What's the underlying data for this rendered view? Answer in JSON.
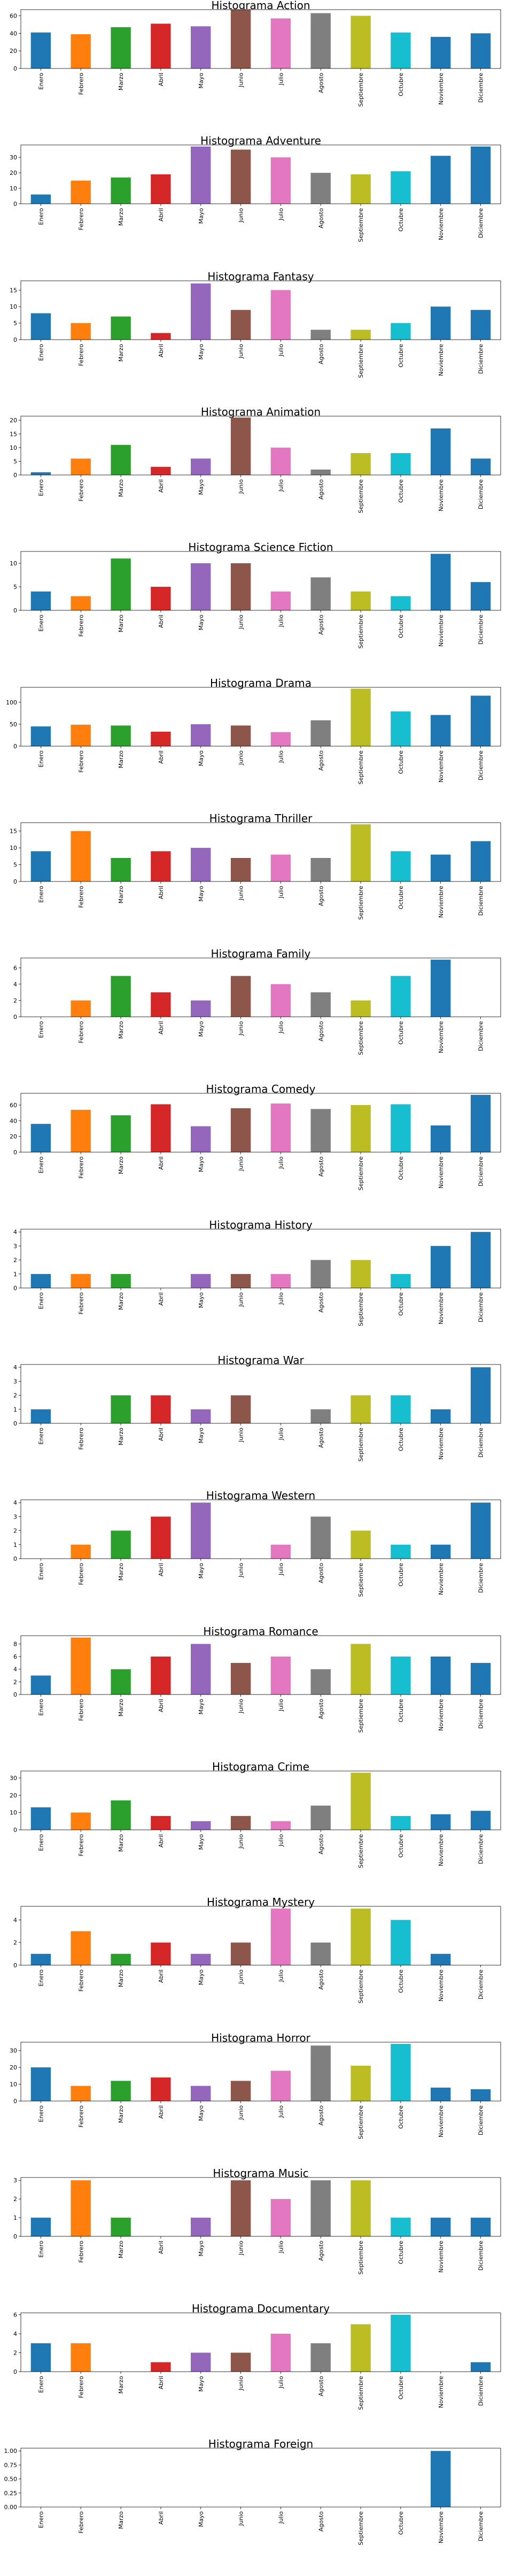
{
  "months": [
    "Enero",
    "Febrero",
    "Marzo",
    "Abril",
    "Mayo",
    "Junio",
    "Julio",
    "Agosto",
    "Septiembre",
    "Octubre",
    "Noviembre",
    "Diciembre"
  ],
  "colors": [
    "#1f77b4",
    "#ff7f0e",
    "#2ca02c",
    "#d62728",
    "#9467bd",
    "#8c564b",
    "#e377c2",
    "#7f7f7f",
    "#bcbd22",
    "#17becf",
    "#1f77b4",
    "#1f77b4"
  ],
  "chart_data": [
    {
      "type": "bar",
      "title": "Histograma Action",
      "categories": [
        "Enero",
        "Febrero",
        "Marzo",
        "Abril",
        "Mayo",
        "Junio",
        "Julio",
        "Agosto",
        "Septiembre",
        "Octubre",
        "Noviembre",
        "Diciembre"
      ],
      "values": [
        41,
        39,
        47,
        51,
        48,
        67,
        57,
        63,
        60,
        41,
        36,
        40
      ],
      "ylim": [
        0,
        67
      ],
      "yticks": [
        0,
        20,
        40,
        60
      ],
      "ytick_labels": [
        "0",
        "20",
        "40",
        "60"
      ],
      "grid": false
    },
    {
      "type": "bar",
      "title": "Histograma Adventure",
      "categories": [
        "Enero",
        "Febrero",
        "Marzo",
        "Abril",
        "Mayo",
        "Junio",
        "Julio",
        "Agosto",
        "Septiembre",
        "Octubre",
        "Noviembre",
        "Diciembre"
      ],
      "values": [
        6,
        15,
        17,
        19,
        37,
        35,
        30,
        20,
        19,
        21,
        31,
        37
      ],
      "ylim": [
        0,
        38
      ],
      "yticks": [
        0,
        10,
        20,
        30
      ],
      "ytick_labels": [
        "0",
        "10",
        "20",
        "30"
      ],
      "grid": false
    },
    {
      "type": "bar",
      "title": "Histograma Fantasy",
      "categories": [
        "Enero",
        "Febrero",
        "Marzo",
        "Abril",
        "Mayo",
        "Junio",
        "Julio",
        "Agosto",
        "Septiembre",
        "Octubre",
        "Noviembre",
        "Diciembre"
      ],
      "values": [
        8,
        5,
        7,
        2,
        17,
        9,
        15,
        3,
        3,
        5,
        10,
        9
      ],
      "ylim": [
        0,
        17.8
      ],
      "yticks": [
        0,
        5,
        10,
        15
      ],
      "ytick_labels": [
        "0",
        "5",
        "10",
        "15"
      ],
      "grid": false
    },
    {
      "type": "bar",
      "title": "Histograma Animation",
      "categories": [
        "Enero",
        "Febrero",
        "Marzo",
        "Abril",
        "Mayo",
        "Junio",
        "Julio",
        "Agosto",
        "Septiembre",
        "Octubre",
        "Noviembre",
        "Diciembre"
      ],
      "values": [
        1,
        6,
        11,
        3,
        6,
        21,
        10,
        2,
        8,
        8,
        17,
        6
      ],
      "ylim": [
        0,
        21.5
      ],
      "yticks": [
        0,
        5,
        10,
        15,
        20
      ],
      "ytick_labels": [
        "0",
        "5",
        "10",
        "15",
        "20"
      ],
      "grid": false
    },
    {
      "type": "bar",
      "title": "Histograma Science Fiction",
      "categories": [
        "Enero",
        "Febrero",
        "Marzo",
        "Abril",
        "Mayo",
        "Junio",
        "Julio",
        "Agosto",
        "Septiembre",
        "Octubre",
        "Noviembre",
        "Diciembre"
      ],
      "values": [
        4,
        3,
        11,
        5,
        10,
        10,
        4,
        7,
        4,
        3,
        12,
        6
      ],
      "ylim": [
        0,
        12.5
      ],
      "yticks": [
        0,
        5,
        10
      ],
      "ytick_labels": [
        "0",
        "5",
        "10"
      ],
      "grid": false
    },
    {
      "type": "bar",
      "title": "Histograma Drama",
      "categories": [
        "Enero",
        "Febrero",
        "Marzo",
        "Abril",
        "Mayo",
        "Junio",
        "Julio",
        "Agosto",
        "Septiembre",
        "Octubre",
        "Noviembre",
        "Diciembre"
      ],
      "values": [
        45,
        49,
        47,
        33,
        50,
        47,
        32,
        59,
        131,
        79,
        71,
        115
      ],
      "ylim": [
        0,
        134
      ],
      "yticks": [
        0,
        50,
        100
      ],
      "ytick_labels": [
        "0",
        "50",
        "100"
      ],
      "grid": false
    },
    {
      "type": "bar",
      "title": "Histograma Thriller",
      "categories": [
        "Enero",
        "Febrero",
        "Marzo",
        "Abril",
        "Mayo",
        "Junio",
        "Julio",
        "Agosto",
        "Septiembre",
        "Octubre",
        "Noviembre",
        "Diciembre"
      ],
      "values": [
        9,
        15,
        7,
        9,
        10,
        7,
        8,
        7,
        17,
        9,
        8,
        12
      ],
      "ylim": [
        0,
        17.5
      ],
      "yticks": [
        0,
        5,
        10,
        15
      ],
      "ytick_labels": [
        "0",
        "5",
        "10",
        "15"
      ],
      "grid": false
    },
    {
      "type": "bar",
      "title": "Histograma Family",
      "categories": [
        "Enero",
        "Febrero",
        "Marzo",
        "Abril",
        "Mayo",
        "Junio",
        "Julio",
        "Agosto",
        "Septiembre",
        "Octubre",
        "Noviembre",
        "Diciembre"
      ],
      "values": [
        0,
        2,
        5,
        3,
        2,
        5,
        4,
        3,
        2,
        5,
        7,
        0
      ],
      "ylim": [
        0,
        7.2
      ],
      "yticks": [
        0,
        2,
        4,
        6
      ],
      "ytick_labels": [
        "0",
        "2",
        "4",
        "6"
      ],
      "grid": false
    },
    {
      "type": "bar",
      "title": "Histograma Comedy",
      "categories": [
        "Enero",
        "Febrero",
        "Marzo",
        "Abril",
        "Mayo",
        "Junio",
        "Julio",
        "Agosto",
        "Septiembre",
        "Octubre",
        "Noviembre",
        "Diciembre"
      ],
      "values": [
        36,
        54,
        47,
        61,
        33,
        56,
        62,
        55,
        60,
        61,
        34,
        73
      ],
      "ylim": [
        0,
        75
      ],
      "yticks": [
        0,
        20,
        40,
        60
      ],
      "ytick_labels": [
        "0",
        "20",
        "40",
        "60"
      ],
      "grid": false
    },
    {
      "type": "bar",
      "title": "Histograma History",
      "categories": [
        "Enero",
        "Febrero",
        "Marzo",
        "Abril",
        "Mayo",
        "Junio",
        "Julio",
        "Agosto",
        "Septiembre",
        "Octubre",
        "Noviembre",
        "Diciembre"
      ],
      "values": [
        1,
        1,
        1,
        0,
        1,
        1,
        1,
        2,
        2,
        1,
        3,
        4
      ],
      "ylim": [
        0,
        4.2
      ],
      "yticks": [
        0,
        1,
        2,
        3,
        4
      ],
      "ytick_labels": [
        "0",
        "1",
        "2",
        "3",
        "4"
      ],
      "grid": false
    },
    {
      "type": "bar",
      "title": "Histograma War",
      "categories": [
        "Enero",
        "Febrero",
        "Marzo",
        "Abril",
        "Mayo",
        "Junio",
        "Julio",
        "Agosto",
        "Septiembre",
        "Octubre",
        "Noviembre",
        "Diciembre"
      ],
      "values": [
        1,
        0,
        2,
        2,
        1,
        2,
        0,
        1,
        2,
        2,
        1,
        4
      ],
      "ylim": [
        0,
        4.2
      ],
      "yticks": [
        0,
        1,
        2,
        3,
        4
      ],
      "ytick_labels": [
        "0",
        "1",
        "2",
        "3",
        "4"
      ],
      "grid": false
    },
    {
      "type": "bar",
      "title": "Histograma Western",
      "categories": [
        "Enero",
        "Febrero",
        "Marzo",
        "Abril",
        "Mayo",
        "Junio",
        "Julio",
        "Agosto",
        "Septiembre",
        "Octubre",
        "Noviembre",
        "Diciembre"
      ],
      "values": [
        0,
        1,
        2,
        3,
        4,
        0,
        1,
        3,
        2,
        1,
        1,
        4
      ],
      "ylim": [
        0,
        4.2
      ],
      "yticks": [
        0,
        1,
        2,
        3,
        4
      ],
      "ytick_labels": [
        "0",
        "1",
        "2",
        "3",
        "4"
      ],
      "grid": false
    },
    {
      "type": "bar",
      "title": "Histograma Romance",
      "categories": [
        "Enero",
        "Febrero",
        "Marzo",
        "Abril",
        "Mayo",
        "Junio",
        "Julio",
        "Agosto",
        "Septiembre",
        "Octubre",
        "Noviembre",
        "Diciembre"
      ],
      "values": [
        3,
        9,
        4,
        6,
        8,
        5,
        6,
        4,
        8,
        6,
        6,
        5
      ],
      "ylim": [
        0,
        9.3
      ],
      "yticks": [
        0,
        2,
        4,
        6,
        8
      ],
      "ytick_labels": [
        "0",
        "2",
        "4",
        "6",
        "8"
      ],
      "grid": false
    },
    {
      "type": "bar",
      "title": "Histograma Crime",
      "categories": [
        "Enero",
        "Febrero",
        "Marzo",
        "Abril",
        "Mayo",
        "Junio",
        "Julio",
        "Agosto",
        "Septiembre",
        "Octubre",
        "Noviembre",
        "Diciembre"
      ],
      "values": [
        13,
        10,
        17,
        8,
        5,
        8,
        5,
        14,
        33,
        8,
        9,
        11
      ],
      "ylim": [
        0,
        34
      ],
      "yticks": [
        0,
        10,
        20,
        30
      ],
      "ytick_labels": [
        "0",
        "10",
        "20",
        "30"
      ],
      "grid": false
    },
    {
      "type": "bar",
      "title": "Histograma Mystery",
      "categories": [
        "Enero",
        "Febrero",
        "Marzo",
        "Abril",
        "Mayo",
        "Junio",
        "Julio",
        "Agosto",
        "Septiembre",
        "Octubre",
        "Noviembre",
        "Diciembre"
      ],
      "values": [
        1,
        3,
        1,
        2,
        1,
        2,
        5,
        2,
        5,
        4,
        1,
        0
      ],
      "ylim": [
        0,
        5.2
      ],
      "yticks": [
        0,
        2,
        4
      ],
      "ytick_labels": [
        "0",
        "2",
        "4"
      ],
      "grid": false
    },
    {
      "type": "bar",
      "title": "Histograma Horror",
      "categories": [
        "Enero",
        "Febrero",
        "Marzo",
        "Abril",
        "Mayo",
        "Junio",
        "Julio",
        "Agosto",
        "Septiembre",
        "Octubre",
        "Noviembre",
        "Diciembre"
      ],
      "values": [
        20,
        9,
        12,
        14,
        9,
        12,
        18,
        33,
        21,
        34,
        8,
        7
      ],
      "ylim": [
        0,
        35
      ],
      "yticks": [
        0,
        10,
        20,
        30
      ],
      "ytick_labels": [
        "0",
        "10",
        "20",
        "30"
      ],
      "grid": false
    },
    {
      "type": "bar",
      "title": "Histograma Music",
      "categories": [
        "Enero",
        "Febrero",
        "Marzo",
        "Abril",
        "Mayo",
        "Junio",
        "Julio",
        "Agosto",
        "Septiembre",
        "Octubre",
        "Noviembre",
        "Diciembre"
      ],
      "values": [
        1,
        3,
        1,
        0,
        1,
        3,
        2,
        3,
        3,
        1,
        1,
        1
      ],
      "ylim": [
        0,
        3.15
      ],
      "yticks": [
        0,
        1,
        2,
        3
      ],
      "ytick_labels": [
        "0",
        "1",
        "2",
        "3"
      ],
      "grid": false
    },
    {
      "type": "bar",
      "title": "Histograma Documentary",
      "categories": [
        "Enero",
        "Febrero",
        "Marzo",
        "Abril",
        "Mayo",
        "Junio",
        "Julio",
        "Agosto",
        "Septiembre",
        "Octubre",
        "Noviembre",
        "Diciembre"
      ],
      "values": [
        3,
        3,
        0,
        1,
        2,
        2,
        4,
        3,
        5,
        6,
        0,
        1
      ],
      "ylim": [
        0,
        6.2
      ],
      "yticks": [
        0,
        2,
        4,
        6
      ],
      "ytick_labels": [
        "0",
        "2",
        "4",
        "6"
      ],
      "grid": false
    },
    {
      "type": "bar",
      "title": "Histograma Foreign",
      "categories": [
        "Enero",
        "Febrero",
        "Marzo",
        "Abril",
        "Mayo",
        "Junio",
        "Julio",
        "Agosto",
        "Septiembre",
        "Octubre",
        "Noviembre",
        "Diciembre"
      ],
      "values": [
        0,
        0,
        0,
        0,
        0,
        0,
        0,
        0,
        0,
        0,
        1,
        0
      ],
      "ylim": [
        0,
        1.05
      ],
      "yticks": [
        0,
        0.25,
        0.5,
        0.75,
        1.0
      ],
      "ytick_labels": [
        "0.00",
        "0.25",
        "0.50",
        "0.75",
        "1.00"
      ],
      "grid": false
    }
  ]
}
